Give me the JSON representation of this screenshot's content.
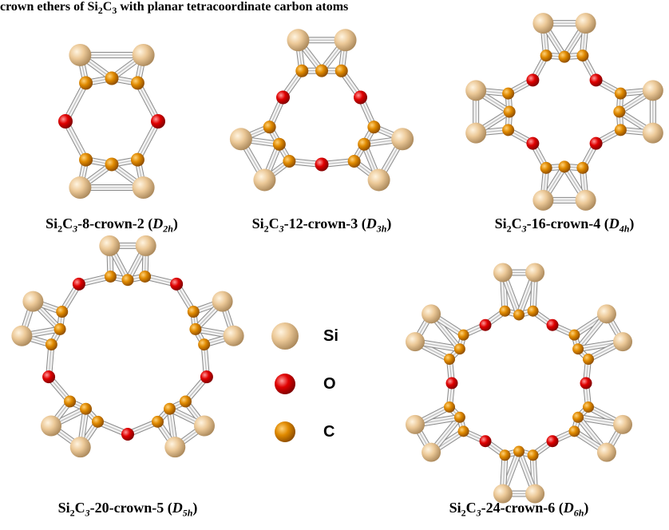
{
  "title": {
    "parts": [
      "crown ethers of Si",
      "2",
      "C",
      "3",
      " with planar tetracoordinate carbon atoms"
    ]
  },
  "structures": [
    {
      "caption": [
        "Si",
        "2",
        "C",
        "3",
        "-8-crown-2 (",
        "D",
        "2h",
        ")"
      ]
    },
    {
      "caption": [
        "Si",
        "2",
        "C",
        "3",
        "-12-crown-3 (",
        "D",
        "3h",
        ")"
      ]
    },
    {
      "caption": [
        "Si",
        "2",
        "C",
        "3",
        "-16-crown-4 (",
        "D",
        "4h",
        ")"
      ]
    },
    {
      "caption": [
        "Si",
        "2",
        "C",
        "3",
        "-20-crown-5 (",
        "D",
        "5h",
        ")"
      ]
    },
    {
      "caption": [
        "Si",
        "2",
        "C",
        "3",
        "-24-crown-6 (",
        "D",
        "6h",
        ")"
      ]
    }
  ],
  "legend": [
    {
      "label": "Si"
    },
    {
      "label": "O"
    },
    {
      "label": "C"
    }
  ]
}
